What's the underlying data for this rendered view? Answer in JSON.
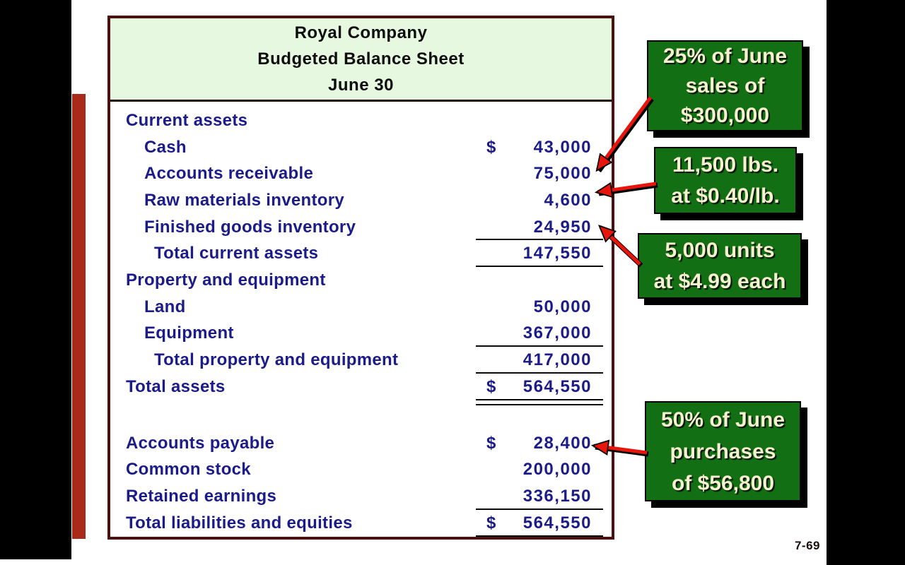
{
  "slide": {
    "page_number": "7-69"
  },
  "table": {
    "title_lines": [
      "Royal Company",
      "Budgeted Balance Sheet",
      "June 30"
    ],
    "rows": [
      {
        "label": "Current assets",
        "indent": 0
      },
      {
        "label": "Cash",
        "indent": 1,
        "dollar": "$",
        "value": "43,000"
      },
      {
        "label": "Accounts receivable",
        "indent": 1,
        "value": "75,000"
      },
      {
        "label": "Raw materials inventory",
        "indent": 1,
        "value": "4,600"
      },
      {
        "label": "Finished goods inventory",
        "indent": 1,
        "value": "24,950",
        "rule": "single"
      },
      {
        "label": "Total current assets",
        "indent": 2,
        "value": "147,550",
        "rule": "single"
      },
      {
        "label": "Property and equipment",
        "indent": 0
      },
      {
        "label": "Land",
        "indent": 1,
        "value": "50,000"
      },
      {
        "label": "Equipment",
        "indent": 1,
        "value": "367,000",
        "rule": "single"
      },
      {
        "label": "Total property and equipment",
        "indent": 2,
        "value": "417,000",
        "rule": "single"
      },
      {
        "label": "Total assets",
        "indent": 0,
        "dollar": "$",
        "value": "564,550",
        "rule": "double"
      },
      {
        "blank": true
      },
      {
        "label": "Accounts payable",
        "indent": 0,
        "dollar": "$",
        "value": "28,400"
      },
      {
        "label": "Common stock",
        "indent": 0,
        "value": "200,000"
      },
      {
        "label": "Retained earnings",
        "indent": 0,
        "value": "336,150",
        "rule": "single"
      },
      {
        "label": "Total liabilities and equities",
        "indent": 0,
        "dollar": "$",
        "value": "564,550",
        "rule": "single"
      }
    ]
  },
  "callouts": [
    {
      "id": "callout-accounts-receivable",
      "lines": [
        "25% of June",
        "sales of",
        "$300,000"
      ]
    },
    {
      "id": "callout-raw-materials",
      "lines": [
        "11,500 lbs.",
        "at $0.40/lb."
      ]
    },
    {
      "id": "callout-finished-goods",
      "lines": [
        "5,000 units",
        "at $4.99 each"
      ]
    },
    {
      "id": "callout-accounts-payable",
      "lines": [
        "50% of June",
        "purchases",
        "of $56,800"
      ]
    }
  ],
  "colors": {
    "table_border": "#4a1111",
    "header_bg": "#e7f8e0",
    "body_text": "#1b1b8a",
    "callout_bg": "#136f13",
    "callout_text": "#f5f1cf",
    "arrow_red": "#e8150c",
    "accent_bar": "#a82a1a"
  }
}
